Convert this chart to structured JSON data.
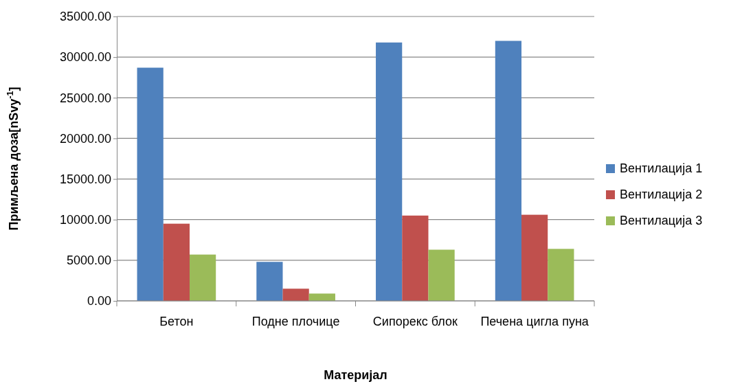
{
  "chart_data": {
    "type": "bar",
    "xlabel": "Материјал",
    "ylabel": "Примљена доза[nSvy$^{-1}$]",
    "categories": [
      "Бетон",
      "Подне плочице",
      "Сипорекс блок",
      "Печена цигла пуна"
    ],
    "series": [
      {
        "name": "Вентилација 1",
        "color": "#4f81bd",
        "values": [
          28700,
          4800,
          31800,
          32000
        ]
      },
      {
        "name": "Вентилација 2",
        "color": "#c0504d",
        "values": [
          9500,
          1500,
          10500,
          10600
        ]
      },
      {
        "name": "Вентилација 3",
        "color": "#9bbb59",
        "values": [
          5700,
          900,
          6300,
          6400
        ]
      }
    ],
    "ylim": [
      0,
      35000
    ],
    "yticks": [
      {
        "value": 0,
        "label": "0.00"
      },
      {
        "value": 5000,
        "label": "5000.00"
      },
      {
        "value": 10000,
        "label": "10000.00"
      },
      {
        "value": 15000,
        "label": "15000.00"
      },
      {
        "value": 20000,
        "label": "20000.00"
      },
      {
        "value": 25000,
        "label": "25000.00"
      },
      {
        "value": 30000,
        "label": "30000.00"
      },
      {
        "value": 35000,
        "label": "35000.00"
      }
    ],
    "grid": "y",
    "legend": "right"
  }
}
